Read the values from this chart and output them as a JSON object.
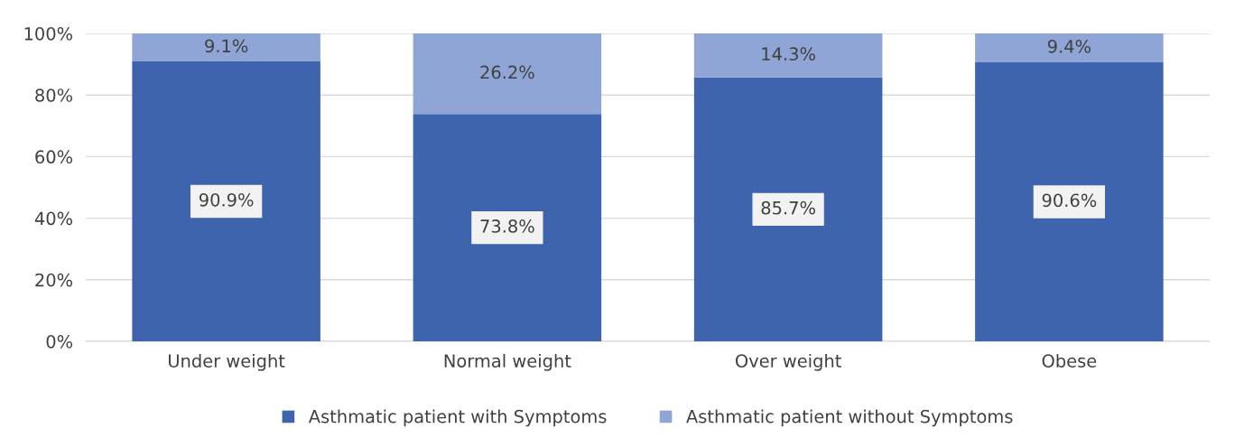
{
  "chart_data": {
    "type": "bar",
    "stacked": true,
    "categories": [
      "Under weight",
      "Normal weight",
      "Over weight",
      "Obese"
    ],
    "series": [
      {
        "name": "Asthmatic patient with Symptoms",
        "color": "#3e64ad",
        "values": [
          90.9,
          73.8,
          85.7,
          90.6
        ],
        "value_labels": [
          "90.9%",
          "73.8%",
          "85.7%",
          "90.6%"
        ]
      },
      {
        "name": "Asthmatic patient without Symptoms",
        "color": "#8fa5d6",
        "values": [
          9.1,
          26.2,
          14.3,
          9.4
        ],
        "value_labels": [
          "9.1%",
          "26.2%",
          "14.3%",
          "9.4%"
        ]
      }
    ],
    "ylim": [
      0,
      100
    ],
    "yticks": [
      {
        "value": 0,
        "label": "0%"
      },
      {
        "value": 20,
        "label": "20%"
      },
      {
        "value": 40,
        "label": "40%"
      },
      {
        "value": 60,
        "label": "60%"
      },
      {
        "value": 80,
        "label": "80%"
      },
      {
        "value": 100,
        "label": "100%"
      }
    ],
    "grid": "y",
    "legend": "bottom"
  }
}
